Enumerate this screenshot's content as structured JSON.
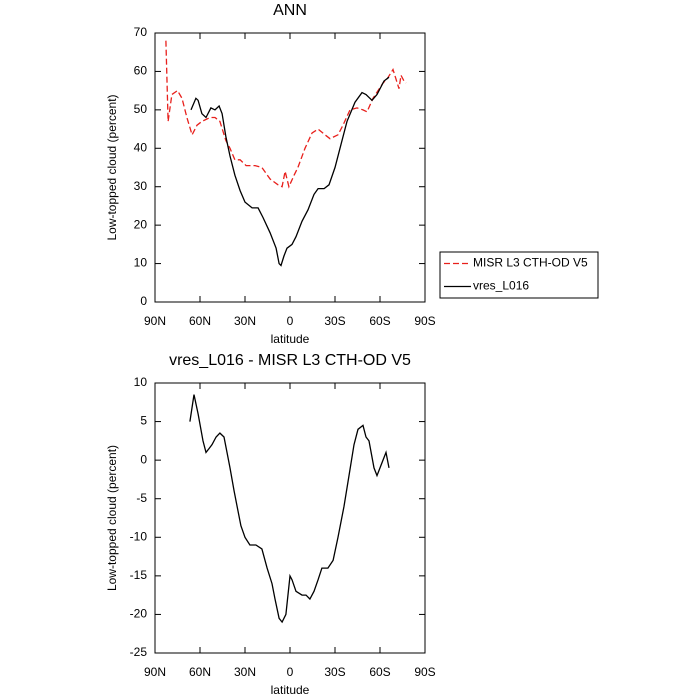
{
  "chart_data": [
    {
      "type": "line",
      "title": "ANN",
      "xlabel": "latitude",
      "ylabel": "Low-topped cloud (percent)",
      "xlim": [
        90,
        -90
      ],
      "xticks": [
        {
          "value": 90,
          "label": "90N"
        },
        {
          "value": 60,
          "label": "60N"
        },
        {
          "value": 30,
          "label": "30N"
        },
        0,
        {
          "value": -30,
          "label": "30S"
        },
        {
          "value": -60,
          "label": "60S"
        },
        {
          "value": -90,
          "label": "90S"
        }
      ],
      "ylim": [
        0,
        70
      ],
      "yticks": [
        0,
        10,
        20,
        30,
        40,
        50,
        60,
        70
      ],
      "legend": "outside-right",
      "series": [
        {
          "name": "MISR L3 CTH-OD V5",
          "color": "#e8201c",
          "dash": "dashed",
          "x": [
            82.7,
            81.3,
            78.7,
            75,
            72,
            68.7,
            65.3,
            62,
            58.7,
            53.3,
            50,
            46.7,
            42.7,
            40,
            36.7,
            33.3,
            29.3,
            23.3,
            18.7,
            13.3,
            8,
            5.3,
            3.3,
            0.7,
            -2.7,
            -5.3,
            -10,
            -14.7,
            -18.7,
            -23.3,
            -26.7,
            -32,
            -35.3,
            -40,
            -44.7,
            -48.7,
            -51.3,
            -55.3,
            -62,
            -64.7,
            -68.7,
            -70.7,
            -72.7,
            -74,
            -76,
            -77.3
          ],
          "values": [
            68,
            47,
            54,
            55,
            53,
            48,
            43.5,
            46,
            47,
            48,
            48,
            47,
            42,
            40,
            37,
            37,
            35.5,
            35.5,
            35,
            32,
            30.5,
            30,
            34,
            30,
            33,
            35,
            40,
            44,
            45,
            43.5,
            42.5,
            43.5,
            46,
            50,
            50.5,
            50,
            49.5,
            53,
            57,
            58,
            60.5,
            58,
            55.5,
            59,
            57.5,
            57
          ]
        },
        {
          "name": "vres_L016",
          "color": "#000000",
          "dash": "solid",
          "x": [
            66,
            62.7,
            61.3,
            58.7,
            56,
            52.7,
            50,
            47.3,
            45.3,
            42.7,
            40,
            36.7,
            33.3,
            30,
            25.3,
            21.3,
            18,
            13.3,
            9.3,
            7.3,
            6,
            4,
            2,
            -1.3,
            -4,
            -8,
            -12,
            -16,
            -18.7,
            -22.7,
            -26,
            -30,
            -34,
            -38,
            -43.3,
            -48,
            -50.7,
            -54.7,
            -58,
            -62.7,
            -66
          ],
          "values": [
            50,
            53,
            52.5,
            49,
            48,
            50.5,
            50,
            51,
            49,
            43,
            38,
            33,
            29,
            26,
            24.5,
            24.5,
            22,
            18,
            14,
            10,
            9.5,
            12,
            14,
            15,
            17,
            21,
            24,
            28,
            29.5,
            29.5,
            30.5,
            35,
            41,
            47,
            52,
            54.5,
            54,
            52.5,
            54,
            57.5,
            58.5
          ]
        }
      ]
    },
    {
      "type": "line",
      "title": "vres_L016 - MISR L3 CTH-OD V5",
      "xlabel": "latitude",
      "ylabel": "Low-topped cloud (percent)",
      "xlim": [
        90,
        -90
      ],
      "xticks": [
        {
          "value": 90,
          "label": "90N"
        },
        {
          "value": 60,
          "label": "60N"
        },
        {
          "value": 30,
          "label": "30N"
        },
        0,
        {
          "value": -30,
          "label": "30S"
        },
        {
          "value": -60,
          "label": "60S"
        },
        {
          "value": -90,
          "label": "90S"
        }
      ],
      "ylim": [
        -25,
        10
      ],
      "yticks": [
        -25,
        -20,
        -15,
        -10,
        -5,
        0,
        5,
        10
      ],
      "color": "#000000",
      "x": [
        66.7,
        64,
        61.3,
        58,
        56,
        54,
        52,
        49.3,
        46.7,
        44,
        42,
        40,
        37.3,
        35.3,
        32.7,
        30,
        26.7,
        22.7,
        18.7,
        15.3,
        12,
        10,
        7.3,
        5.3,
        2.7,
        0,
        -1.3,
        -4,
        -8,
        -10.7,
        -13.3,
        -16,
        -18.7,
        -21.3,
        -25.3,
        -28.7,
        -32,
        -36,
        -39.3,
        -42.7,
        -45.3,
        -48.7,
        -50.7,
        -52.7,
        -56,
        -58,
        -60,
        -62,
        -64,
        -66
      ],
      "values": [
        5,
        8.5,
        6,
        2.5,
        1,
        1.5,
        2,
        3,
        3.5,
        3,
        1,
        -1,
        -4,
        -6,
        -8.5,
        -10,
        -11,
        -11,
        -11.5,
        -14,
        -16,
        -18,
        -20.5,
        -21,
        -20,
        -15,
        -15.5,
        -17,
        -17.5,
        -17.5,
        -18,
        -17,
        -15.5,
        -14,
        -14,
        -13,
        -10,
        -6,
        -2,
        2,
        4,
        4.5,
        3,
        2.5,
        -1,
        -2,
        -1,
        0,
        1,
        -1
      ]
    }
  ]
}
